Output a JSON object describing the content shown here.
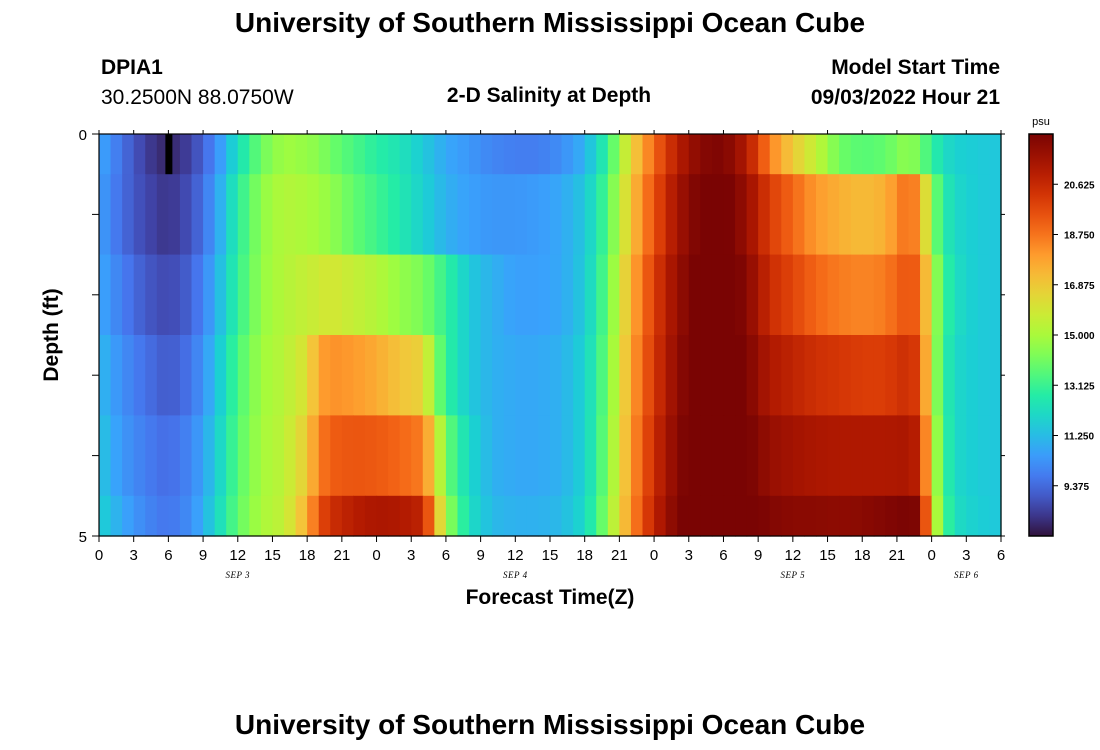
{
  "page": {
    "title": "University of Southern Mississippi Ocean Cube",
    "footer_title": "University of Southern Mississippi Ocean Cube",
    "station_id": "DPIA1",
    "station_coords": "30.2500N  88.0750W",
    "plot_title": "2-D Salinity at Depth",
    "model_start_label": "Model Start Time",
    "model_start_value": "09/03/2022 Hour 21"
  },
  "chart_data": {
    "type": "heatmap",
    "title": "2-D Salinity at Depth",
    "xlabel": "Forecast Time(Z)",
    "ylabel": "Depth (ft)",
    "colorbar_unit": "psu",
    "colorbar_ticks": [
      20.625,
      18.75,
      16.875,
      15.0,
      13.125,
      11.25,
      9.375
    ],
    "colorbar_ticks_text": [
      "20.625",
      "18.750",
      "16.875",
      "15.000",
      "13.125",
      "11.250",
      "9.375"
    ],
    "vmin": 7.5,
    "vmax": 22.5,
    "xlim": [
      0,
      78
    ],
    "ylim": [
      0,
      5
    ],
    "y_tick_values": [
      0,
      1,
      2,
      3,
      4,
      5
    ],
    "y_tick_labels": [
      "0",
      "5"
    ],
    "x_tick_labels": [
      "0",
      "3",
      "6",
      "9",
      "12",
      "15",
      "18",
      "21",
      "0",
      "3",
      "6",
      "9",
      "12",
      "15",
      "18",
      "21",
      "0",
      "3",
      "6",
      "9",
      "12",
      "15",
      "18",
      "21",
      "0",
      "3",
      "6"
    ],
    "date_labels": [
      {
        "text": "SEP 3",
        "hour": 12
      },
      {
        "text": "SEP 4",
        "hour": 36
      },
      {
        "text": "SEP 5",
        "hour": 60
      },
      {
        "text": "SEP 6",
        "hour": 75
      }
    ],
    "missing_cells": [
      {
        "layer": 0,
        "hour": 6
      }
    ],
    "layer_bounds": [
      0,
      0.5,
      1.5,
      2.5,
      3.5,
      4.5,
      5
    ],
    "salinity_keyframes": {
      "hours": [
        0,
        2,
        4,
        6,
        8,
        10,
        12,
        14,
        16,
        18,
        19,
        20,
        22,
        24,
        26,
        27,
        28,
        29,
        30,
        32,
        34,
        36,
        38,
        40,
        42,
        44,
        46,
        48,
        50,
        52,
        54,
        56,
        58,
        60,
        62,
        64,
        66,
        68,
        70,
        71,
        72,
        73,
        74,
        76,
        78
      ],
      "layers": [
        [
          10.8,
          9.5,
          8.4,
          7.9,
          8.5,
          10.0,
          12.2,
          14.0,
          14.8,
          14.6,
          14.4,
          14.0,
          13.4,
          12.8,
          12.4,
          12.0,
          11.6,
          11.2,
          10.8,
          10.4,
          10.0,
          9.8,
          9.8,
          10.2,
          11.0,
          13.0,
          16.5,
          19.0,
          21.0,
          22.2,
          22.4,
          21.2,
          18.5,
          16.8,
          15.5,
          14.0,
          13.6,
          13.8,
          14.6,
          14.0,
          13.0,
          12.2,
          11.8,
          11.6,
          11.5
        ],
        [
          10.6,
          9.4,
          8.6,
          8.2,
          8.8,
          10.4,
          12.8,
          14.5,
          15.2,
          15.0,
          14.8,
          14.6,
          13.8,
          13.2,
          12.6,
          12.2,
          11.8,
          11.4,
          11.0,
          10.6,
          10.4,
          10.4,
          10.5,
          10.8,
          11.5,
          13.5,
          17.0,
          19.5,
          21.5,
          22.6,
          22.7,
          21.8,
          20.0,
          19.0,
          18.0,
          17.5,
          17.2,
          17.5,
          19.0,
          18.0,
          14.5,
          12.8,
          12.0,
          11.6,
          11.5
        ],
        [
          10.8,
          9.8,
          9.0,
          8.6,
          9.2,
          10.8,
          13.0,
          14.6,
          15.2,
          15.6,
          15.8,
          16.0,
          15.6,
          15.2,
          14.6,
          14.4,
          14.2,
          13.6,
          13.0,
          11.6,
          11.0,
          10.6,
          10.6,
          10.8,
          11.6,
          13.8,
          17.5,
          20.0,
          21.8,
          22.8,
          22.9,
          22.2,
          20.5,
          19.8,
          19.0,
          18.6,
          18.4,
          18.6,
          19.5,
          19.0,
          15.5,
          13.2,
          12.2,
          11.6,
          11.5
        ],
        [
          11.2,
          10.2,
          9.5,
          9.0,
          9.6,
          11.2,
          13.4,
          14.8,
          15.3,
          16.2,
          17.8,
          18.2,
          18.0,
          17.6,
          17.0,
          16.8,
          16.6,
          14.5,
          13.0,
          11.6,
          11.0,
          10.8,
          10.8,
          11.0,
          11.8,
          14.0,
          17.8,
          20.2,
          22.0,
          22.9,
          23.0,
          22.4,
          21.2,
          20.8,
          20.4,
          20.2,
          20.0,
          20.0,
          20.5,
          19.8,
          15.5,
          13.0,
          12.0,
          11.6,
          11.5
        ],
        [
          11.5,
          10.4,
          9.8,
          9.4,
          10.0,
          11.5,
          13.6,
          14.9,
          15.4,
          16.8,
          18.5,
          19.2,
          19.4,
          19.3,
          19.0,
          18.8,
          18.6,
          16.5,
          14.0,
          12.0,
          11.0,
          10.8,
          10.8,
          11.0,
          11.8,
          14.2,
          18.0,
          20.5,
          22.2,
          23.0,
          23.2,
          22.6,
          21.8,
          21.5,
          21.3,
          21.2,
          21.2,
          21.2,
          21.3,
          20.8,
          16.0,
          13.2,
          12.0,
          11.6,
          11.5
        ],
        [
          11.8,
          10.8,
          10.0,
          9.6,
          10.2,
          11.8,
          13.8,
          15.0,
          15.5,
          17.5,
          19.5,
          20.4,
          21.0,
          21.3,
          21.2,
          21.0,
          20.8,
          18.0,
          14.8,
          12.2,
          11.2,
          11.0,
          11.0,
          11.2,
          12.0,
          14.5,
          18.2,
          20.8,
          22.4,
          23.2,
          23.3,
          22.8,
          22.3,
          22.1,
          22.1,
          22.0,
          22.1,
          22.3,
          22.5,
          22.3,
          16.5,
          13.5,
          12.2,
          11.7,
          11.5
        ]
      ]
    }
  }
}
